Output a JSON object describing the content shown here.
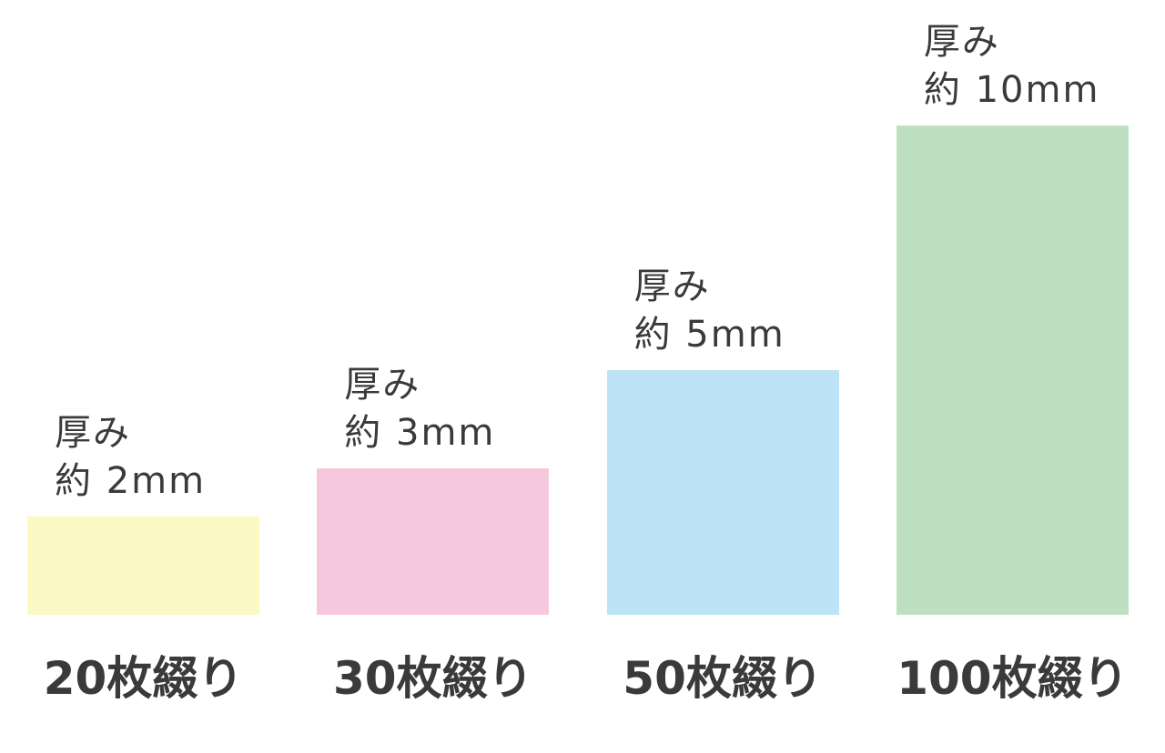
{
  "chart_data": {
    "type": "bar",
    "categories": [
      "20枚綴り",
      "30枚綴り",
      "50枚綴り",
      "100枚綴り"
    ],
    "values": [
      2,
      3,
      5,
      10
    ],
    "value_labels": [
      "厚み\n約 2mm",
      "厚み\n約 3mm",
      "厚み\n約 5mm",
      "厚み\n約 10mm"
    ],
    "colors": [
      "#fdf9c4",
      "#f6c8dd",
      "#bde4f6",
      "#bfe0c0"
    ]
  }
}
